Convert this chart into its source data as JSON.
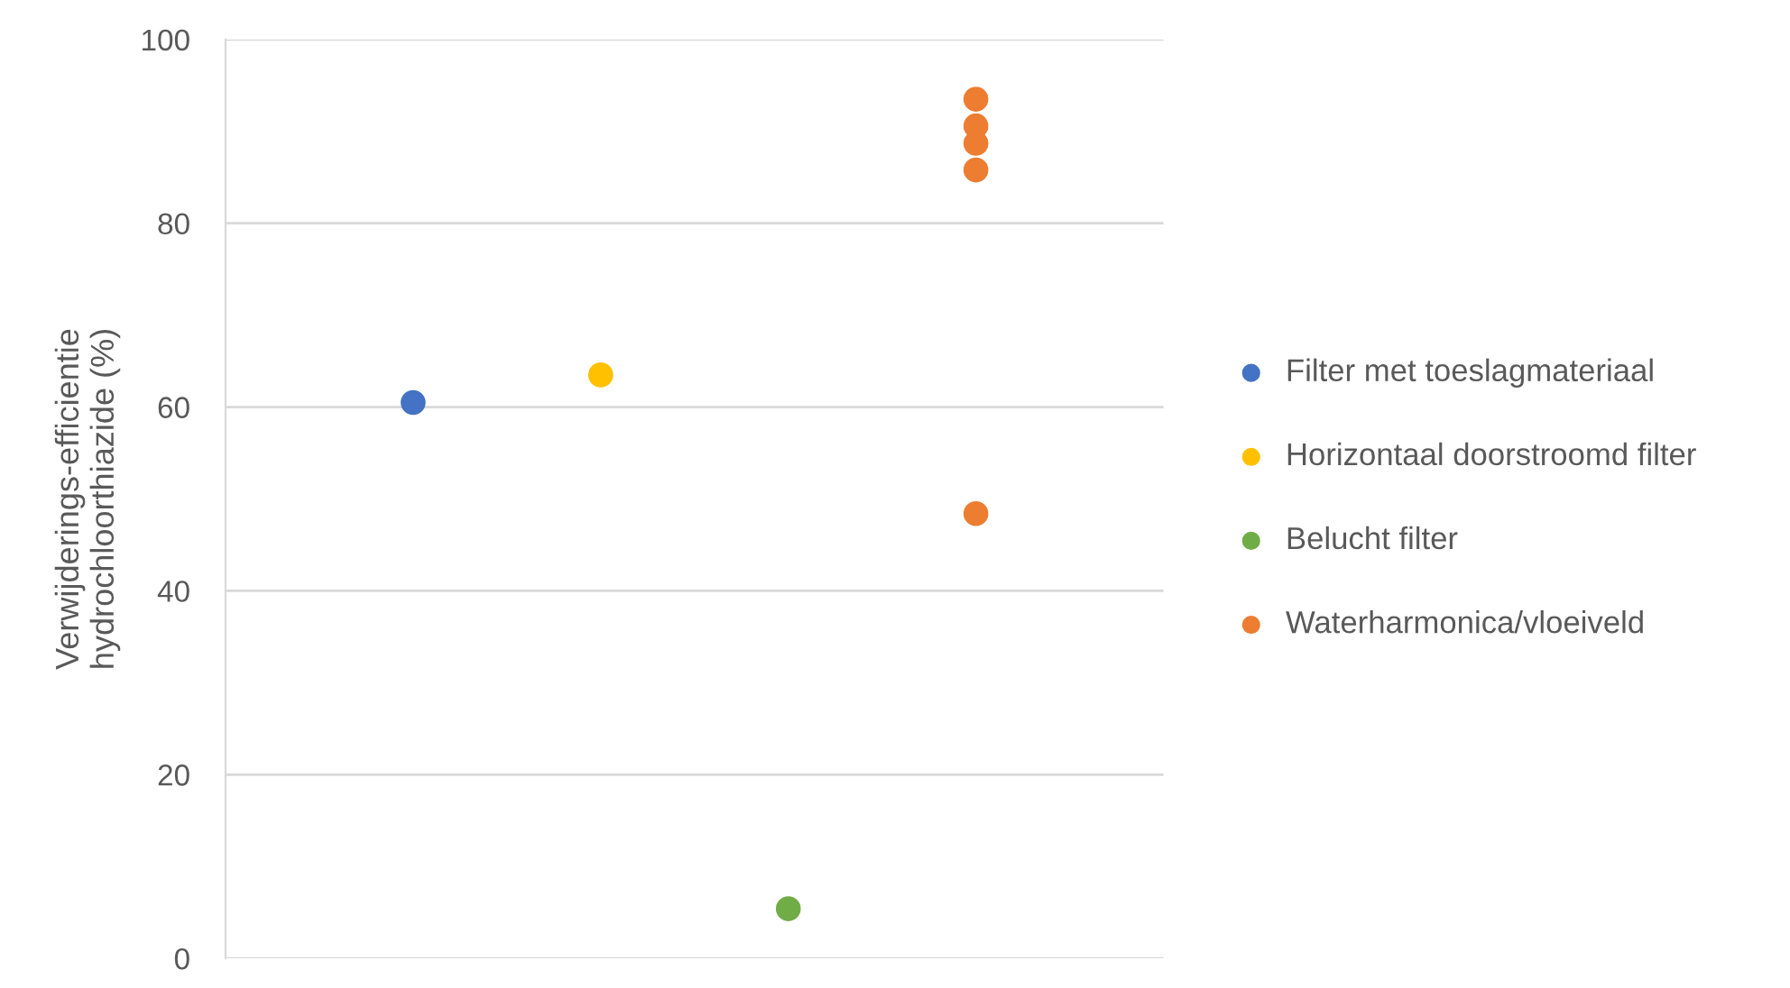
{
  "chart_data": {
    "type": "scatter",
    "ylabel": "Verwijderings-efficientie\nhydrochloorthiazide (%)",
    "categories": [
      null,
      null,
      null,
      null
    ],
    "ylim": [
      0,
      100
    ],
    "yticks": [
      0,
      20,
      40,
      60,
      80,
      100
    ],
    "grid": "y",
    "legend": "right",
    "tick_labels": "y",
    "marker": "circle",
    "series": [
      {
        "name": "Filter met toeslagmateriaal",
        "color": "#4472c4",
        "values": [
          60.5,
          null,
          null,
          null
        ]
      },
      {
        "name": "Horizontaal doorstroomd filter",
        "color": "#ffc000",
        "values": [
          null,
          63.5,
          null,
          null
        ]
      },
      {
        "name": "Belucht filter",
        "color": "#70ad47",
        "values": [
          null,
          null,
          5.4,
          null
        ]
      },
      {
        "name": "Waterharmonica/vloeiveld",
        "color": "#ed7d31",
        "values": [
          null,
          null,
          null,
          93.5
        ]
      },
      {
        "color": "#ed7d31",
        "values": [
          null,
          null,
          null,
          90.6
        ]
      },
      {
        "color": "#ed7d31",
        "values": [
          null,
          null,
          null,
          88.7
        ]
      },
      {
        "color": "#ed7d31",
        "values": [
          null,
          null,
          null,
          85.8
        ]
      },
      {
        "color": "#ed7d31",
        "values": [
          null,
          null,
          null,
          48.4
        ]
      }
    ]
  }
}
